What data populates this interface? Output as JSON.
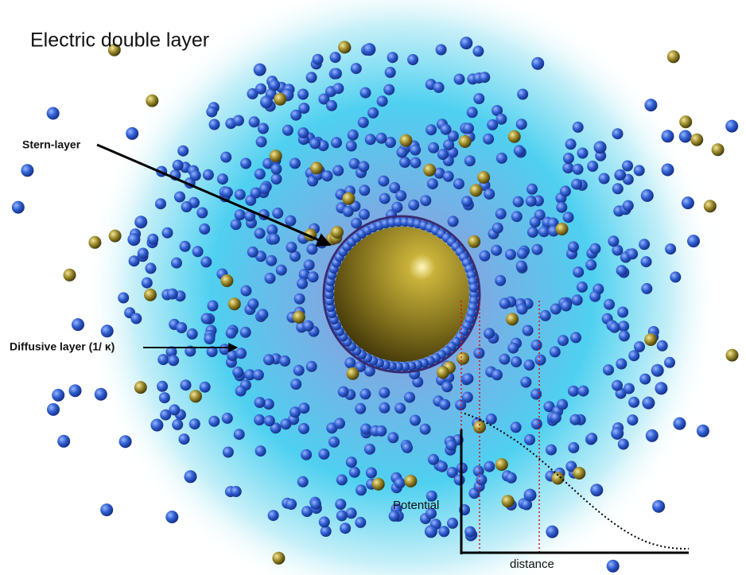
{
  "title": "Electric double layer",
  "labels": {
    "stern": "Stern-layer",
    "diffusive": "Diffusive layer (1/ κ)"
  },
  "plot": {
    "y_label": "Potential",
    "x_label": "distance"
  }
}
